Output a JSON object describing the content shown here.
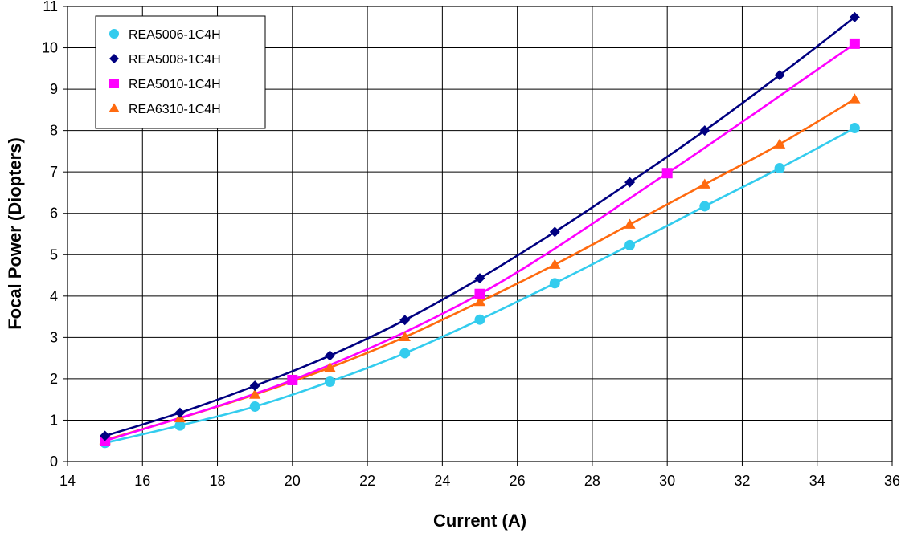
{
  "chart_data": {
    "type": "line",
    "title": "",
    "xlabel": "Current (A)",
    "ylabel": "Focal Power (Diopters)",
    "xlim": [
      14,
      36
    ],
    "ylim": [
      0,
      11
    ],
    "xticks": [
      14,
      16,
      18,
      20,
      22,
      24,
      26,
      28,
      30,
      32,
      34,
      36
    ],
    "yticks": [
      0,
      1,
      2,
      3,
      4,
      5,
      6,
      7,
      8,
      9,
      10,
      11
    ],
    "grid": true,
    "legend_position": "top-left",
    "series": [
      {
        "name": "REA5006-1C4H",
        "color": "#33CCEE",
        "marker": "circle",
        "x": [
          15,
          17,
          19,
          21,
          23,
          25,
          27,
          29,
          31,
          33,
          35
        ],
        "y": [
          0.45,
          0.87,
          1.33,
          1.93,
          2.62,
          3.43,
          4.31,
          5.23,
          6.17,
          7.09,
          8.06
        ]
      },
      {
        "name": "REA5008-1C4H",
        "color": "#000080",
        "marker": "diamond",
        "x": [
          15,
          17,
          19,
          21,
          23,
          25,
          27,
          29,
          31,
          33,
          35
        ],
        "y": [
          0.62,
          1.18,
          1.83,
          2.56,
          3.42,
          4.43,
          5.55,
          6.75,
          8.0,
          9.34,
          10.74
        ]
      },
      {
        "name": "REA5010-1C4H",
        "color": "#FF00FF",
        "marker": "square",
        "x": [
          15,
          20,
          25,
          30,
          35
        ],
        "y": [
          0.5,
          1.97,
          4.05,
          6.97,
          10.1
        ]
      },
      {
        "name": "REA6310-1C4H",
        "color": "#FF6A0F",
        "marker": "triangle",
        "x": [
          15,
          17,
          19,
          21,
          23,
          25,
          27,
          29,
          31,
          33,
          35
        ],
        "y": [
          0.52,
          1.05,
          1.62,
          2.27,
          3.01,
          3.86,
          4.76,
          5.73,
          6.7,
          7.67,
          8.76
        ]
      }
    ]
  }
}
